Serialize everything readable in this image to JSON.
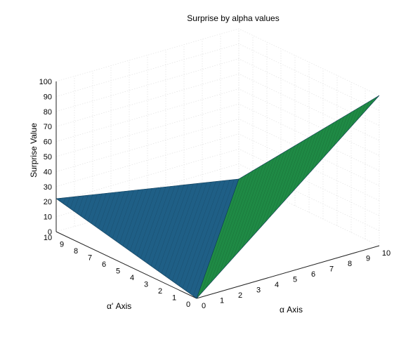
{
  "chart_data": {
    "type": "surface",
    "title": "Surprise by alpha values",
    "xlabel": "α Axis",
    "ylabel": "α' Axis",
    "zlabel": "Surprise Value",
    "xlim": [
      0,
      10
    ],
    "ylim": [
      0,
      10
    ],
    "zlim": [
      0,
      100
    ],
    "x_ticks": [
      "0",
      "1",
      "2",
      "3",
      "4",
      "5",
      "6",
      "7",
      "8",
      "9",
      "10"
    ],
    "y_ticks": [
      "0",
      "1",
      "2",
      "3",
      "4",
      "5",
      "6",
      "7",
      "8",
      "9",
      "10"
    ],
    "z_ticks": [
      "0",
      "10",
      "20",
      "30",
      "40",
      "50",
      "60",
      "70",
      "80",
      "90",
      "100"
    ],
    "grid": true,
    "surfaces": [
      {
        "color": "#1f5f86",
        "region": "alpha' >= alpha",
        "corner_values": [
          {
            "x": 0,
            "y": 0,
            "z": 0
          },
          {
            "x": 0,
            "y": 10,
            "z": 22
          },
          {
            "x": 10,
            "y": 10,
            "z": 0
          }
        ]
      },
      {
        "color": "#1f8a45",
        "region": "alpha > alpha'",
        "corner_values": [
          {
            "x": 0,
            "y": 0,
            "z": 0
          },
          {
            "x": 10,
            "y": 0,
            "z": 100
          },
          {
            "x": 10,
            "y": 10,
            "z": 0
          }
        ]
      }
    ]
  }
}
